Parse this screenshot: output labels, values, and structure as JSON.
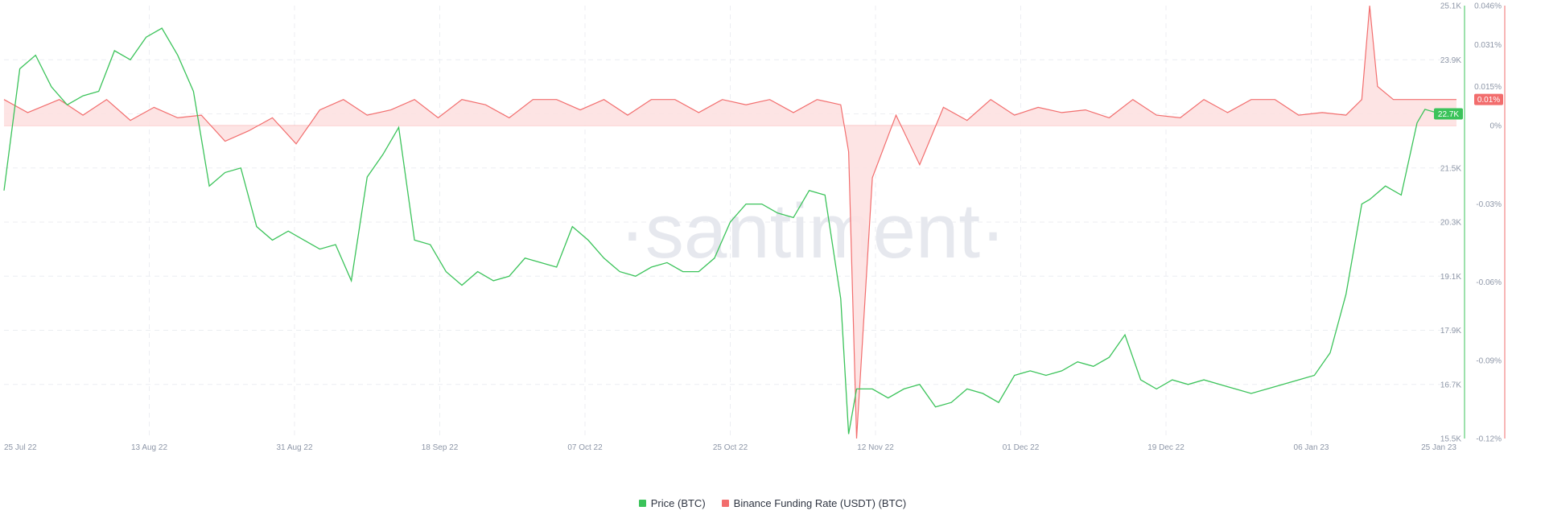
{
  "watermark": "·santiment·",
  "colors": {
    "price": "#3bc35a",
    "funding": "#f26d6d",
    "funding_fill": "#fde1e1",
    "grid": "#eceef2"
  },
  "chart_data": {
    "type": "line",
    "title": "",
    "x_tick_labels": [
      "25 Jul 22",
      "13 Aug 22",
      "31 Aug 22",
      "18 Sep 22",
      "07 Oct 22",
      "25 Oct 22",
      "12 Nov 22",
      "01 Dec 22",
      "19 Dec 22",
      "06 Jan 23",
      "25 Jan 23"
    ],
    "y_left": {
      "labels": [
        "25.1K",
        "23.9K",
        "22.7K",
        "21.5K",
        "20.3K",
        "19.1K",
        "17.9K",
        "16.7K",
        "15.5K"
      ],
      "range": [
        15500,
        25100
      ]
    },
    "y_right": {
      "labels": [
        "0.046%",
        "0.031%",
        "0.015%",
        "0%",
        "-0.03%",
        "-0.06%",
        "-0.09%",
        "-0.12%"
      ],
      "range": [
        -0.12,
        0.046
      ]
    },
    "current_value_badges": {
      "price": "22.7K",
      "funding": "0.01%"
    },
    "series": [
      {
        "name": "Price (BTC)",
        "axis": "left",
        "x": [
          "2022-07-25",
          "2022-07-27",
          "2022-07-29",
          "2022-07-31",
          "2022-08-02",
          "2022-08-04",
          "2022-08-06",
          "2022-08-08",
          "2022-08-10",
          "2022-08-12",
          "2022-08-14",
          "2022-08-16",
          "2022-08-18",
          "2022-08-20",
          "2022-08-22",
          "2022-08-24",
          "2022-08-26",
          "2022-08-28",
          "2022-08-30",
          "2022-09-01",
          "2022-09-03",
          "2022-09-05",
          "2022-09-07",
          "2022-09-09",
          "2022-09-11",
          "2022-09-13",
          "2022-09-15",
          "2022-09-17",
          "2022-09-19",
          "2022-09-21",
          "2022-09-23",
          "2022-09-25",
          "2022-09-27",
          "2022-09-29",
          "2022-10-01",
          "2022-10-03",
          "2022-10-05",
          "2022-10-07",
          "2022-10-09",
          "2022-10-11",
          "2022-10-13",
          "2022-10-15",
          "2022-10-17",
          "2022-10-19",
          "2022-10-21",
          "2022-10-23",
          "2022-10-25",
          "2022-10-27",
          "2022-10-29",
          "2022-10-31",
          "2022-11-02",
          "2022-11-04",
          "2022-11-06",
          "2022-11-08",
          "2022-11-09",
          "2022-11-10",
          "2022-11-12",
          "2022-11-14",
          "2022-11-16",
          "2022-11-18",
          "2022-11-20",
          "2022-11-22",
          "2022-11-24",
          "2022-11-26",
          "2022-11-28",
          "2022-11-30",
          "2022-12-02",
          "2022-12-04",
          "2022-12-06",
          "2022-12-08",
          "2022-12-10",
          "2022-12-12",
          "2022-12-14",
          "2022-12-16",
          "2022-12-18",
          "2022-12-20",
          "2022-12-22",
          "2022-12-24",
          "2022-12-26",
          "2022-12-28",
          "2022-12-30",
          "2023-01-01",
          "2023-01-03",
          "2023-01-05",
          "2023-01-07",
          "2023-01-09",
          "2023-01-11",
          "2023-01-13",
          "2023-01-14",
          "2023-01-16",
          "2023-01-18",
          "2023-01-20",
          "2023-01-21",
          "2023-01-23",
          "2023-01-25"
        ],
        "values": [
          21000,
          23700,
          24000,
          23300,
          22900,
          23100,
          23200,
          24100,
          23900,
          24400,
          24600,
          24000,
          23200,
          21100,
          21400,
          21500,
          20200,
          19900,
          20100,
          19900,
          19700,
          19800,
          19000,
          21300,
          21800,
          22400,
          19900,
          19800,
          19200,
          18900,
          19200,
          19000,
          19100,
          19500,
          19400,
          19300,
          20200,
          19900,
          19500,
          19200,
          19100,
          19300,
          19400,
          19200,
          19200,
          19500,
          20300,
          20700,
          20700,
          20500,
          20400,
          21000,
          20900,
          18600,
          15600,
          16600,
          16600,
          16400,
          16600,
          16700,
          16200,
          16300,
          16600,
          16500,
          16300,
          16900,
          17000,
          16900,
          17000,
          17200,
          17100,
          17300,
          17800,
          16800,
          16600,
          16800,
          16700,
          16800,
          16700,
          16600,
          16500,
          16600,
          16700,
          16800,
          16900,
          17400,
          18700,
          20700,
          20800,
          21100,
          20900,
          22500,
          22800,
          22700,
          22700
        ]
      },
      {
        "name": "Binance Funding Rate (USDT) (BTC)",
        "axis": "right",
        "x": [
          "2022-07-25",
          "2022-07-28",
          "2022-08-01",
          "2022-08-04",
          "2022-08-07",
          "2022-08-10",
          "2022-08-13",
          "2022-08-16",
          "2022-08-19",
          "2022-08-22",
          "2022-08-25",
          "2022-08-28",
          "2022-08-31",
          "2022-09-03",
          "2022-09-06",
          "2022-09-09",
          "2022-09-12",
          "2022-09-15",
          "2022-09-18",
          "2022-09-21",
          "2022-09-24",
          "2022-09-27",
          "2022-09-30",
          "2022-10-03",
          "2022-10-06",
          "2022-10-09",
          "2022-10-12",
          "2022-10-15",
          "2022-10-18",
          "2022-10-21",
          "2022-10-24",
          "2022-10-27",
          "2022-10-30",
          "2022-11-02",
          "2022-11-05",
          "2022-11-08",
          "2022-11-09",
          "2022-11-10",
          "2022-11-12",
          "2022-11-15",
          "2022-11-18",
          "2022-11-21",
          "2022-11-24",
          "2022-11-27",
          "2022-11-30",
          "2022-12-03",
          "2022-12-06",
          "2022-12-09",
          "2022-12-12",
          "2022-12-15",
          "2022-12-18",
          "2022-12-21",
          "2022-12-24",
          "2022-12-27",
          "2022-12-30",
          "2023-01-02",
          "2023-01-05",
          "2023-01-08",
          "2023-01-11",
          "2023-01-13",
          "2023-01-14",
          "2023-01-15",
          "2023-01-17",
          "2023-01-20",
          "2023-01-23",
          "2023-01-25"
        ],
        "values": [
          0.01,
          0.005,
          0.01,
          0.004,
          0.01,
          0.002,
          0.007,
          0.003,
          0.004,
          -0.006,
          -0.002,
          0.003,
          -0.007,
          0.006,
          0.01,
          0.004,
          0.006,
          0.01,
          0.003,
          0.01,
          0.008,
          0.003,
          0.01,
          0.01,
          0.006,
          0.01,
          0.004,
          0.01,
          0.01,
          0.005,
          0.01,
          0.008,
          0.01,
          0.005,
          0.01,
          0.008,
          -0.01,
          -0.12,
          -0.02,
          0.004,
          -0.015,
          0.007,
          0.002,
          0.01,
          0.004,
          0.007,
          0.005,
          0.006,
          0.003,
          0.01,
          0.004,
          0.003,
          0.01,
          0.005,
          0.01,
          0.01,
          0.004,
          0.005,
          0.004,
          0.01,
          0.046,
          0.015,
          0.01,
          0.01,
          0.01,
          0.01
        ]
      }
    ],
    "grid": true,
    "legend_position": "bottom-center"
  },
  "legend": [
    {
      "label": "Price (BTC)"
    },
    {
      "label": "Binance Funding Rate (USDT) (BTC)"
    }
  ]
}
